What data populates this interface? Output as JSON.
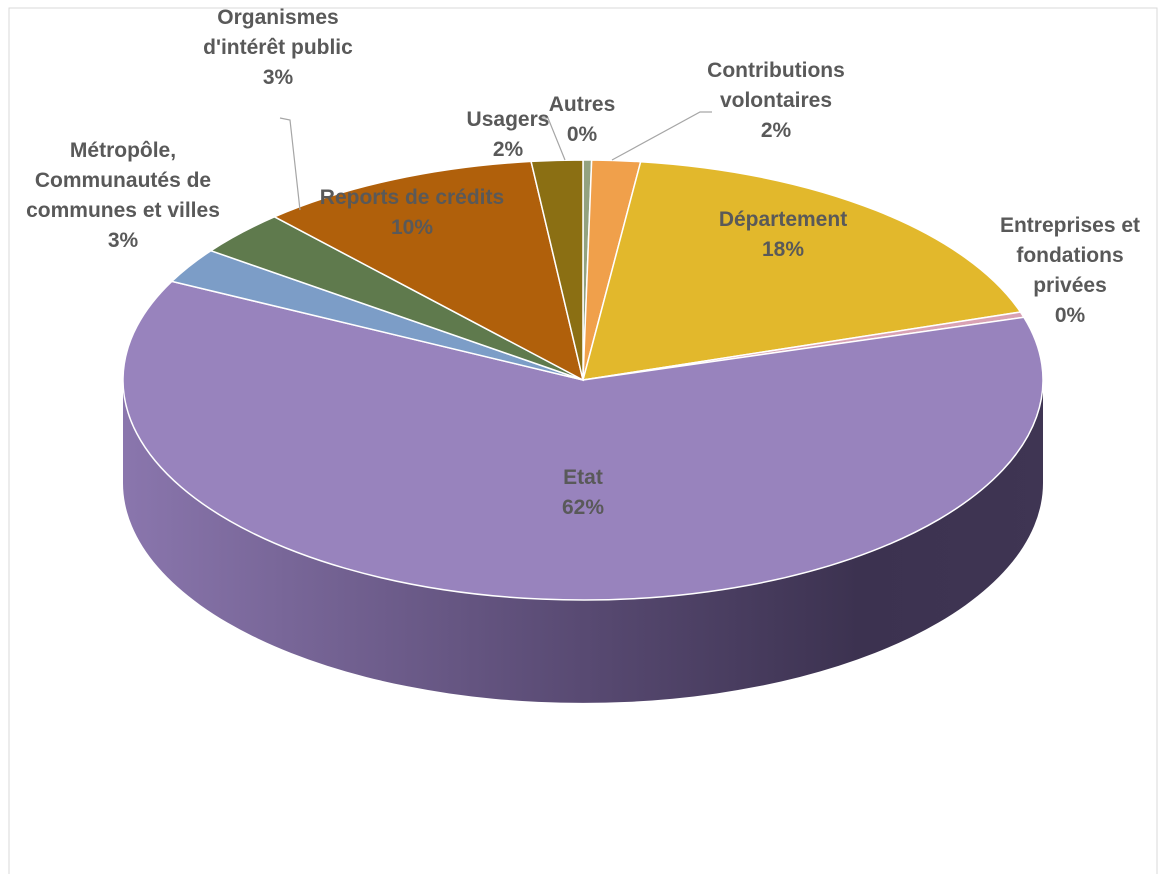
{
  "chart_data": {
    "type": "pie3d",
    "categories": [
      "Autres",
      "Contributions volontaires",
      "Département",
      "Entreprises et fondations privées",
      "Etat",
      "Métropôle, Communautés de communes et villes",
      "Organismes d'intérêt public",
      "Reports de crédits",
      "Usagers"
    ],
    "values": [
      0.3,
      1.7,
      18,
      0.4,
      62,
      2.6,
      3.3,
      9.9,
      1.8
    ],
    "value_labels": [
      "0%",
      "2%",
      "18%",
      "0%",
      "62%",
      "3%",
      "3%",
      "10%",
      "2%"
    ],
    "colors": [
      "#93a27f",
      "#f0a04b",
      "#e2b82c",
      "#d9a2b4",
      "#9883bd",
      "#7c9dc7",
      "#5f7a4d",
      "#b0600b",
      "#8b6f13"
    ]
  }
}
